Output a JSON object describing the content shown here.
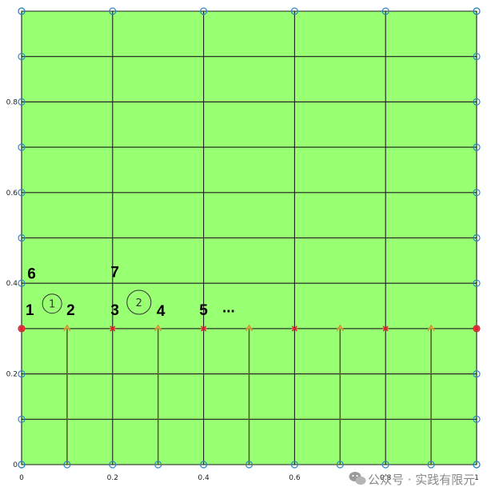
{
  "chart_data": {
    "type": "mesh",
    "xlim": [
      0,
      1
    ],
    "ylim": [
      0,
      1
    ],
    "x_ticks": [
      {
        "value": 0,
        "label": "0"
      },
      {
        "value": 0.2,
        "label": "0.2"
      },
      {
        "value": 0.4,
        "label": "0.4"
      },
      {
        "value": 0.6,
        "label": "0.6"
      },
      {
        "value": 0.8,
        "label": "0.8"
      },
      {
        "value": 1,
        "label": "1"
      }
    ],
    "y_ticks": [
      {
        "value": 0,
        "label": "0"
      },
      {
        "value": 0.2,
        "label": "0.2"
      },
      {
        "value": 0.4,
        "label": "0.4"
      },
      {
        "value": 0.6,
        "label": "0.6"
      },
      {
        "value": 0.8,
        "label": "0.8"
      }
    ],
    "grid_vertical_x": [
      0,
      0.2,
      0.4,
      0.6,
      0.8,
      1
    ],
    "grid_horizontal_y": [
      0,
      0.1,
      0.2,
      0.3,
      0.4,
      0.5,
      0.6,
      0.7,
      0.8,
      0.9,
      1
    ],
    "interface_y": 0.3,
    "crack_lines_x": [
      0.1,
      0.3,
      0.5,
      0.7,
      0.9
    ],
    "red_nodes": [
      {
        "x": 0,
        "y": 0.3
      },
      {
        "x": 0.2,
        "y": 0.3
      },
      {
        "x": 0.4,
        "y": 0.3
      },
      {
        "x": 0.6,
        "y": 0.3
      },
      {
        "x": 0.8,
        "y": 0.3
      },
      {
        "x": 1,
        "y": 0.3
      }
    ],
    "orange_nodes": [
      {
        "x": 0.1,
        "y": 0.3
      },
      {
        "x": 0.3,
        "y": 0.3
      },
      {
        "x": 0.5,
        "y": 0.3
      },
      {
        "x": 0.7,
        "y": 0.3
      },
      {
        "x": 0.9,
        "y": 0.3
      }
    ],
    "node_labels": [
      {
        "text": "1",
        "x": 0.018,
        "y": 0.33
      },
      {
        "text": "2",
        "x": 0.108,
        "y": 0.33
      },
      {
        "text": "3",
        "x": 0.205,
        "y": 0.33
      },
      {
        "text": "4",
        "x": 0.306,
        "y": 0.328
      },
      {
        "text": "5",
        "x": 0.4,
        "y": 0.33
      },
      {
        "text": "...",
        "x": 0.455,
        "y": 0.336
      },
      {
        "text": "6",
        "x": 0.022,
        "y": 0.41
      },
      {
        "text": "7",
        "x": 0.205,
        "y": 0.414
      }
    ],
    "element_labels": [
      {
        "text": "1",
        "x": 0.067,
        "y": 0.355
      },
      {
        "text": "2",
        "x": 0.258,
        "y": 0.358
      }
    ],
    "colors": {
      "fill": "#99ff73",
      "grid": "#1c1c1c",
      "crack": "#5c5c30",
      "node_ring": "#2e86c1",
      "red_node": "#e8202a",
      "orange_node": "#d98a2a"
    }
  },
  "watermark": {
    "icon": "wechat-icon",
    "text": "公众号 · 实践有限元"
  }
}
